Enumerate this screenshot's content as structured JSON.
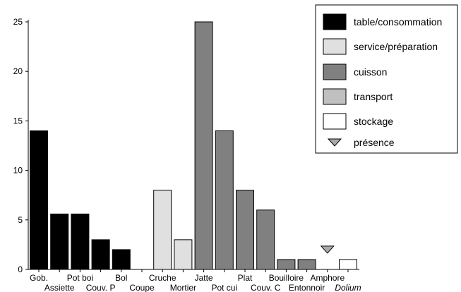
{
  "chart_data": {
    "type": "bar",
    "title": "",
    "xlabel": "",
    "ylabel": "",
    "ylim": [
      0,
      25
    ],
    "yticks": [
      0,
      5,
      10,
      15,
      20,
      25
    ],
    "grid": false,
    "legend_placement": "top-right",
    "groups": [
      {
        "key": "table",
        "label": "table/consommation",
        "color": "#000000"
      },
      {
        "key": "service",
        "label": "service/préparation",
        "color": "#e0e0e0"
      },
      {
        "key": "cuisson",
        "label": "cuisson",
        "color": "#808080"
      },
      {
        "key": "transport",
        "label": "transport",
        "color": "#c0c0c0"
      },
      {
        "key": "stockage",
        "label": "stockage",
        "color": "#ffffff"
      }
    ],
    "presence_marker": {
      "label": "présence",
      "color": "#a8a8a8"
    },
    "categories": [
      {
        "label": "Gob.",
        "value": 14,
        "group": "table",
        "row": 0
      },
      {
        "label": "Assiette",
        "value": 5.6,
        "group": "table",
        "row": 1
      },
      {
        "label": "Pot boi",
        "value": 5.6,
        "group": "table",
        "row": 0
      },
      {
        "label": "Couv. P",
        "value": 3,
        "group": "table",
        "row": 1
      },
      {
        "label": "Bol",
        "value": 2,
        "group": "table",
        "row": 0
      },
      {
        "label": "Coupe",
        "value": 0,
        "group": "table",
        "row": 1
      },
      {
        "label": "Cruche",
        "value": 8,
        "group": "service",
        "row": 0
      },
      {
        "label": "Mortier",
        "value": 3,
        "group": "service",
        "row": 1
      },
      {
        "label": "Jatte",
        "value": 25,
        "group": "cuisson",
        "row": 0
      },
      {
        "label": "Pot cui",
        "value": 14,
        "group": "cuisson",
        "row": 1
      },
      {
        "label": "Plat",
        "value": 8,
        "group": "cuisson",
        "row": 0
      },
      {
        "label": "Couv. C",
        "value": 6,
        "group": "cuisson",
        "row": 1
      },
      {
        "label": "Bouilloire",
        "value": 1,
        "group": "cuisson",
        "row": 0
      },
      {
        "label": "Entonnoir",
        "value": 1,
        "group": "cuisson",
        "row": 1
      },
      {
        "label": "Amphore",
        "value": null,
        "group": "transport",
        "presence": true,
        "row": 0
      },
      {
        "label": "Dolium",
        "value": 1,
        "group": "stockage",
        "row": 1,
        "italic": true
      }
    ]
  }
}
